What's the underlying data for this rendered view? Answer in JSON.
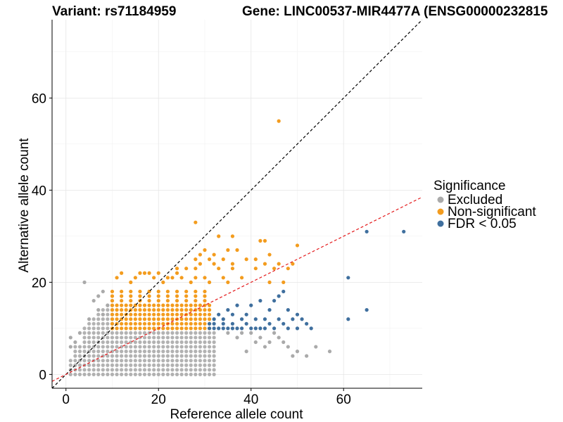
{
  "chart_data": {
    "type": "scatter",
    "title_left": "Variant: rs71184959",
    "title_right": "Gene: LINC00537-MIR4477A (ENSG00000232815",
    "xlabel": "Reference allele count",
    "ylabel": "Alternative allele count",
    "xlim": [
      -3,
      77
    ],
    "ylim": [
      -3,
      77
    ],
    "xticks": [
      0,
      20,
      40,
      60
    ],
    "yticks": [
      0,
      20,
      40,
      60
    ],
    "grid": true,
    "legend": {
      "title": "Significance",
      "position": "right",
      "entries": [
        {
          "label": "Excluded",
          "color": "#aaaaaa"
        },
        {
          "label": "Non-significant",
          "color": "#f39c1e"
        },
        {
          "label": "FDR < 0.05",
          "color": "#3f6f9e"
        }
      ]
    },
    "reference_lines": [
      {
        "name": "identity",
        "slope": 1,
        "intercept": 0,
        "color": "#000000",
        "style": "dashed"
      },
      {
        "name": "fit",
        "slope": 0.5,
        "intercept": 0,
        "color": "#e41a1c",
        "style": "dashed"
      }
    ],
    "series": [
      {
        "name": "Excluded",
        "color": "#aaaaaa",
        "points": [
          [
            4,
            20
          ],
          [
            1,
            8
          ],
          [
            1,
            6
          ],
          [
            2,
            7
          ],
          [
            3,
            9
          ],
          [
            6,
            16
          ],
          [
            7,
            17
          ],
          [
            8,
            18
          ],
          [
            5,
            12
          ],
          [
            7,
            14
          ],
          [
            9,
            15
          ],
          [
            8,
            13
          ],
          [
            35,
            9
          ],
          [
            38,
            9
          ],
          [
            40,
            9
          ],
          [
            42,
            8
          ],
          [
            44,
            7
          ],
          [
            46,
            8
          ],
          [
            48,
            6
          ],
          [
            50,
            5
          ],
          [
            52,
            4
          ],
          [
            54,
            6
          ],
          [
            57,
            5
          ],
          [
            45,
            9
          ],
          [
            47,
            7
          ],
          [
            49,
            4
          ],
          [
            37,
            8
          ],
          [
            41,
            7
          ],
          [
            43,
            6
          ],
          [
            39,
            5
          ]
        ]
      },
      {
        "name": "Non-significant",
        "color": "#f39c1e",
        "points": [
          [
            46,
            55
          ],
          [
            28,
            33
          ],
          [
            33,
            30
          ],
          [
            36,
            30
          ],
          [
            42,
            29
          ],
          [
            43,
            29
          ],
          [
            50,
            28
          ],
          [
            30,
            27
          ],
          [
            35,
            27
          ],
          [
            37,
            27
          ],
          [
            29,
            26
          ],
          [
            32,
            26
          ],
          [
            44,
            26
          ],
          [
            28,
            25
          ],
          [
            31,
            25
          ],
          [
            34,
            25
          ],
          [
            39,
            25
          ],
          [
            41,
            25
          ],
          [
            29,
            24
          ],
          [
            32,
            24
          ],
          [
            36,
            24
          ],
          [
            43,
            24
          ],
          [
            46,
            24
          ],
          [
            49,
            24
          ],
          [
            24,
            23
          ],
          [
            26,
            23
          ],
          [
            28,
            23
          ],
          [
            33,
            23
          ],
          [
            36,
            23
          ],
          [
            41,
            23
          ],
          [
            45,
            23
          ],
          [
            48,
            23
          ],
          [
            12,
            22
          ],
          [
            16,
            22
          ],
          [
            17,
            22
          ],
          [
            18,
            22
          ],
          [
            20,
            22
          ],
          [
            24,
            22
          ],
          [
            34,
            21
          ],
          [
            38,
            21
          ],
          [
            44,
            20
          ],
          [
            11,
            21
          ],
          [
            15,
            21
          ],
          [
            19,
            21
          ],
          [
            23,
            21
          ],
          [
            47,
            20
          ],
          [
            25,
            21
          ],
          [
            28,
            21
          ],
          [
            31,
            20
          ],
          [
            14,
            20
          ],
          [
            21,
            20
          ],
          [
            27,
            20
          ],
          [
            35,
            20
          ],
          [
            30,
            21
          ],
          [
            22,
            21
          ]
        ]
      },
      {
        "name": "FDR < 0.05",
        "color": "#3f6f9e",
        "points": [
          [
            65,
            31
          ],
          [
            73,
            31
          ],
          [
            61,
            21
          ],
          [
            65,
            14
          ],
          [
            61,
            12
          ],
          [
            47,
            18
          ],
          [
            46,
            17
          ],
          [
            45,
            16
          ],
          [
            42,
            16
          ],
          [
            40,
            15
          ],
          [
            37,
            15
          ],
          [
            35,
            14
          ],
          [
            33,
            13
          ],
          [
            44,
            14
          ],
          [
            39,
            13
          ],
          [
            36,
            13
          ],
          [
            34,
            12
          ],
          [
            32,
            12
          ],
          [
            38,
            12
          ],
          [
            41,
            12
          ],
          [
            43,
            12
          ],
          [
            46,
            12
          ],
          [
            49,
            12
          ],
          [
            50,
            13
          ],
          [
            48,
            14
          ],
          [
            51,
            12
          ],
          [
            52,
            11
          ],
          [
            53,
            10
          ],
          [
            44,
            11
          ],
          [
            47,
            11
          ],
          [
            31,
            11
          ],
          [
            32,
            11
          ],
          [
            34,
            11
          ],
          [
            36,
            11
          ],
          [
            39,
            11
          ],
          [
            41,
            10
          ],
          [
            43,
            10
          ],
          [
            45,
            10
          ],
          [
            48,
            10
          ],
          [
            50,
            10
          ],
          [
            31,
            10
          ],
          [
            32,
            10
          ],
          [
            33,
            10
          ],
          [
            34,
            10
          ],
          [
            35,
            10
          ],
          [
            36,
            10
          ],
          [
            37,
            10
          ],
          [
            38,
            10
          ],
          [
            40,
            10
          ],
          [
            42,
            10
          ]
        ]
      }
    ]
  }
}
